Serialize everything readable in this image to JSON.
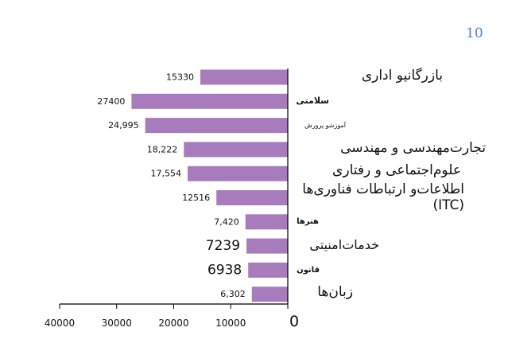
{
  "page_number": "10",
  "chart_data": {
    "type": "bar",
    "orientation": "horizontal",
    "x_axis_reversed": true,
    "xlim": [
      0,
      40000
    ],
    "x_ticks": [
      {
        "value": 40000,
        "label": "40000"
      },
      {
        "value": 30000,
        "label": "30000"
      },
      {
        "value": 20000,
        "label": "20000"
      },
      {
        "value": 10000,
        "label": "10000"
      },
      {
        "value": 0,
        "label": "0"
      }
    ],
    "bar_color": "#a87cbc",
    "categories": [
      "بازرگانیو اداری",
      "سلامتی",
      "آموزشو پرورش",
      "تجارت‌مهندسی و مهندسی",
      "علوم‌اجتماعی و رفتاری",
      "اطلاعات‌و ارتباطات فناوری‌ها (ITC)",
      "هنرها",
      "خدمات‌امنیتی",
      "قانون",
      "زبان‌ها"
    ],
    "values": [
      15330,
      27400,
      24995,
      18222,
      17554,
      12516,
      7420,
      7239,
      6938,
      6302
    ],
    "value_labels": [
      "15330",
      "27400",
      "24,995",
      "18,222",
      "17,554",
      "12516",
      "7,420",
      "7239",
      "6938",
      "6,302"
    ],
    "title": "",
    "xlabel": "",
    "ylabel": "",
    "grid": false,
    "legend": "none"
  }
}
